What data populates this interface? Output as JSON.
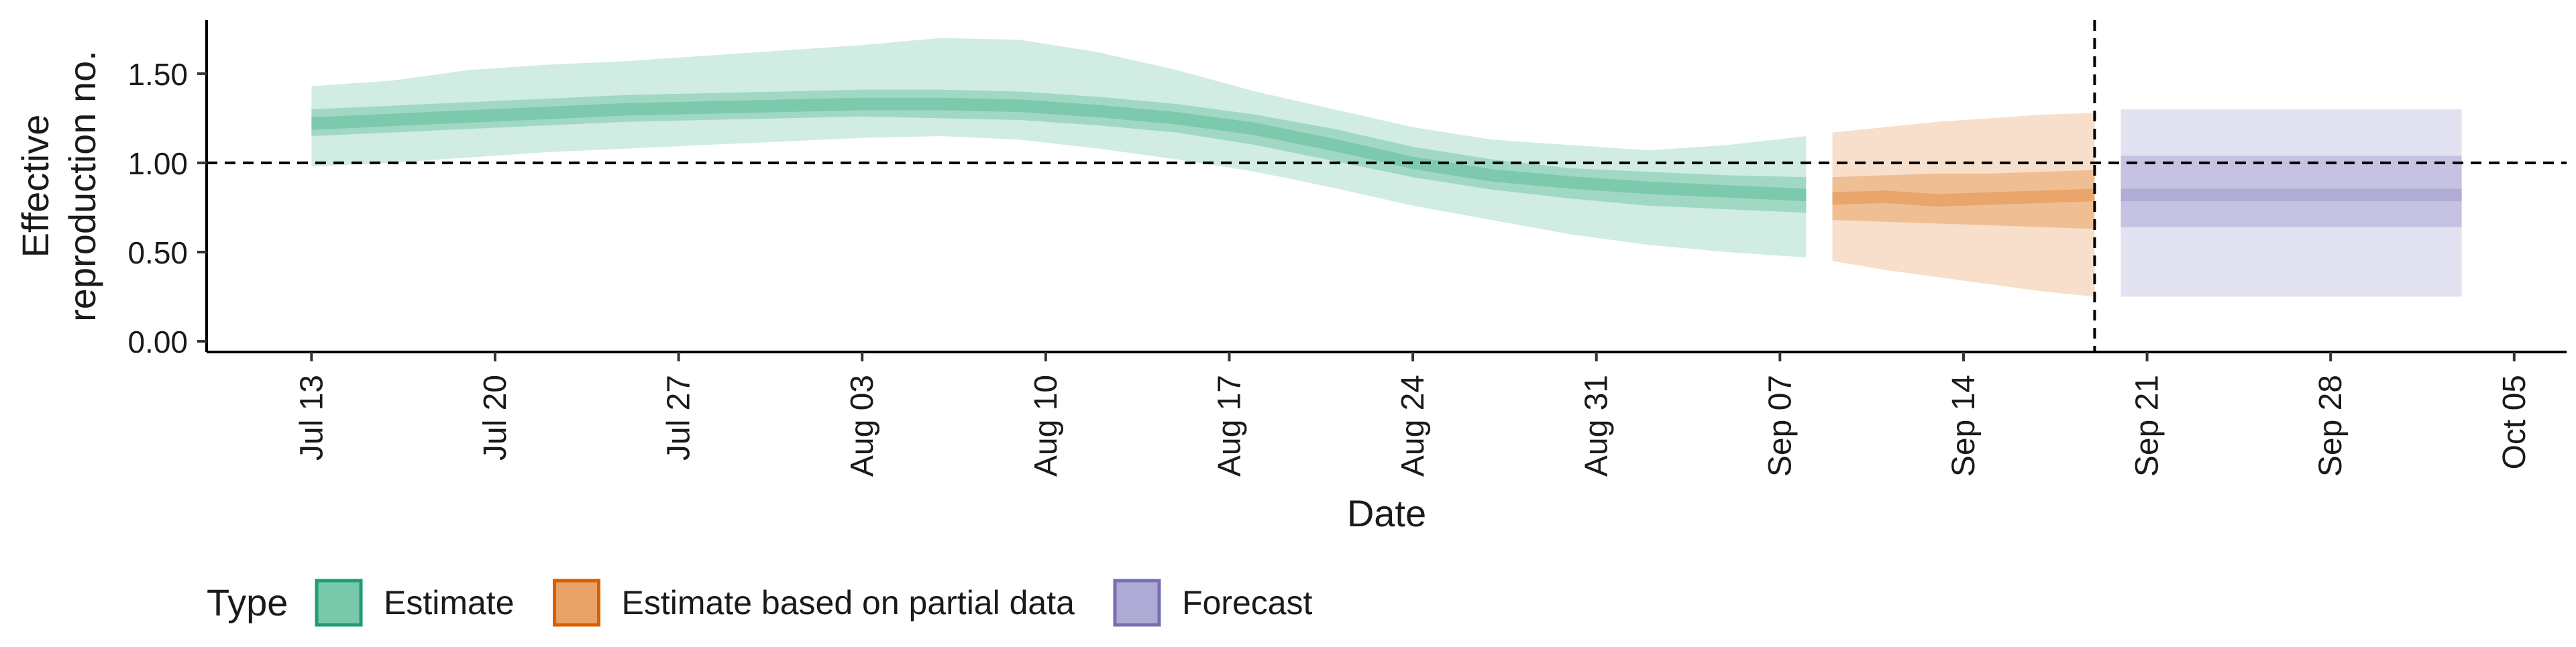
{
  "chart_data": {
    "type": "area",
    "xlabel": "Date",
    "ylabel_lines": [
      "Effective",
      "reproduction no."
    ],
    "x_ticks": [
      "Jul 13",
      "Jul 20",
      "Jul 27",
      "Aug 03",
      "Aug 10",
      "Aug 17",
      "Aug 24",
      "Aug 31",
      "Sep 07",
      "Sep 14",
      "Sep 21",
      "Sep 28",
      "Oct 05"
    ],
    "x_tick_dates": [
      "2020-07-13",
      "2020-07-20",
      "2020-07-27",
      "2020-08-03",
      "2020-08-10",
      "2020-08-17",
      "2020-08-24",
      "2020-08-31",
      "2020-09-07",
      "2020-09-14",
      "2020-09-21",
      "2020-09-28",
      "2020-10-05"
    ],
    "xlim": [
      "2020-07-09",
      "2020-10-07"
    ],
    "y_ticks": [
      "0.00",
      "0.50",
      "1.00",
      "1.50"
    ],
    "ylim": [
      -0.06,
      1.8
    ],
    "hline_y": 1.0,
    "vline_date": "2020-09-19",
    "grid": false,
    "legend_position": "bottom-left",
    "legend_title": "Type",
    "series": [
      {
        "name": "Estimate",
        "color": "#1b9e77",
        "fill": "#79c8ab",
        "bands": [
          {
            "dates": [
              "2020-07-13",
              "2020-07-16",
              "2020-07-19",
              "2020-07-22",
              "2020-07-25",
              "2020-07-28",
              "2020-07-31",
              "2020-08-03",
              "2020-08-06",
              "2020-08-09",
              "2020-08-12",
              "2020-08-15",
              "2020-08-18",
              "2020-08-21",
              "2020-08-24",
              "2020-08-27",
              "2020-08-30",
              "2020-09-02",
              "2020-09-05",
              "2020-09-08"
            ],
            "median": [
              1.22,
              1.24,
              1.26,
              1.28,
              1.3,
              1.31,
              1.32,
              1.33,
              1.33,
              1.32,
              1.29,
              1.25,
              1.19,
              1.1,
              1.0,
              0.93,
              0.89,
              0.86,
              0.84,
              0.82
            ],
            "lower_90": [
              0.98,
              1.0,
              1.03,
              1.06,
              1.08,
              1.1,
              1.12,
              1.14,
              1.15,
              1.13,
              1.08,
              1.02,
              0.95,
              0.86,
              0.76,
              0.68,
              0.6,
              0.54,
              0.5,
              0.47
            ],
            "upper_90": [
              1.43,
              1.46,
              1.52,
              1.55,
              1.57,
              1.6,
              1.63,
              1.66,
              1.7,
              1.69,
              1.62,
              1.52,
              1.4,
              1.3,
              1.2,
              1.13,
              1.1,
              1.07,
              1.1,
              1.15
            ],
            "lower_50": [
              1.15,
              1.17,
              1.19,
              1.21,
              1.23,
              1.24,
              1.25,
              1.26,
              1.25,
              1.24,
              1.21,
              1.17,
              1.1,
              1.01,
              0.92,
              0.85,
              0.8,
              0.76,
              0.74,
              0.72
            ],
            "upper_50": [
              1.3,
              1.32,
              1.34,
              1.36,
              1.38,
              1.39,
              1.4,
              1.41,
              1.41,
              1.4,
              1.37,
              1.33,
              1.27,
              1.19,
              1.09,
              1.02,
              0.97,
              0.95,
              0.93,
              0.92
            ]
          }
        ]
      },
      {
        "name": "Estimate based on partial data",
        "color": "#d95f02",
        "fill": "#e9a266",
        "bands": [
          {
            "dates": [
              "2020-09-09",
              "2020-09-11",
              "2020-09-13",
              "2020-09-15",
              "2020-09-17",
              "2020-09-19"
            ],
            "median": [
              0.8,
              0.81,
              0.79,
              0.8,
              0.81,
              0.82
            ],
            "lower_90": [
              0.45,
              0.4,
              0.36,
              0.32,
              0.28,
              0.25
            ],
            "upper_90": [
              1.17,
              1.2,
              1.23,
              1.25,
              1.27,
              1.28
            ],
            "lower_50": [
              0.68,
              0.67,
              0.66,
              0.65,
              0.64,
              0.63
            ],
            "upper_50": [
              0.92,
              0.93,
              0.94,
              0.94,
              0.95,
              0.96
            ]
          }
        ]
      },
      {
        "name": "Forecast",
        "color": "#7570b3",
        "fill": "#aeaad5",
        "bands": [
          {
            "dates": [
              "2020-09-20",
              "2020-10-03"
            ],
            "median": [
              0.82,
              0.82
            ],
            "lower_90": [
              0.25,
              0.25
            ],
            "upper_90": [
              1.3,
              1.3
            ],
            "lower_50": [
              0.64,
              0.64
            ],
            "upper_50": [
              1.04,
              1.04
            ]
          }
        ]
      }
    ]
  }
}
